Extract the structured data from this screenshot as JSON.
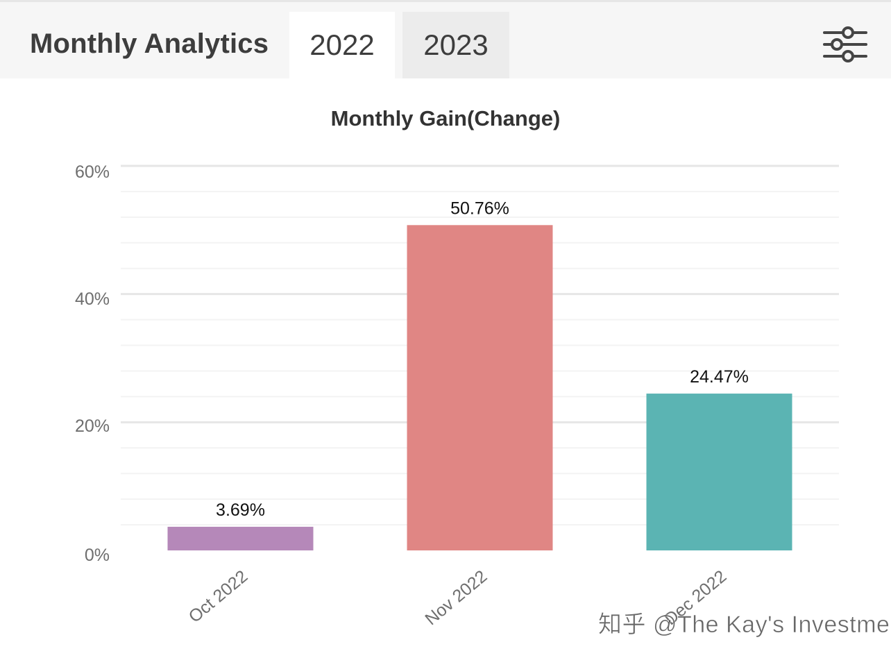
{
  "header": {
    "title": "Monthly Analytics",
    "tabs": [
      {
        "label": "2022",
        "active": true
      },
      {
        "label": "2023",
        "active": false
      }
    ],
    "filter_icon": "sliders-icon"
  },
  "chart_data": {
    "type": "bar",
    "title": "Monthly Gain(Change)",
    "categories": [
      "Oct 2022",
      "Nov 2022",
      "Dec 2022"
    ],
    "values": [
      3.69,
      50.76,
      24.47
    ],
    "value_labels": [
      "3.69%",
      "50.76%",
      "24.47%"
    ],
    "colors": [
      "#b588b9",
      "#e08684",
      "#5bb4b3"
    ],
    "ylim": [
      0,
      60
    ],
    "yticks": [
      0,
      20,
      40,
      60
    ],
    "ytick_labels": [
      "0%",
      "20%",
      "40%",
      "60%"
    ],
    "xlabel": "",
    "ylabel": "",
    "grid": true,
    "legend": "none"
  },
  "watermark": "知乎 @The Kay's Investment"
}
